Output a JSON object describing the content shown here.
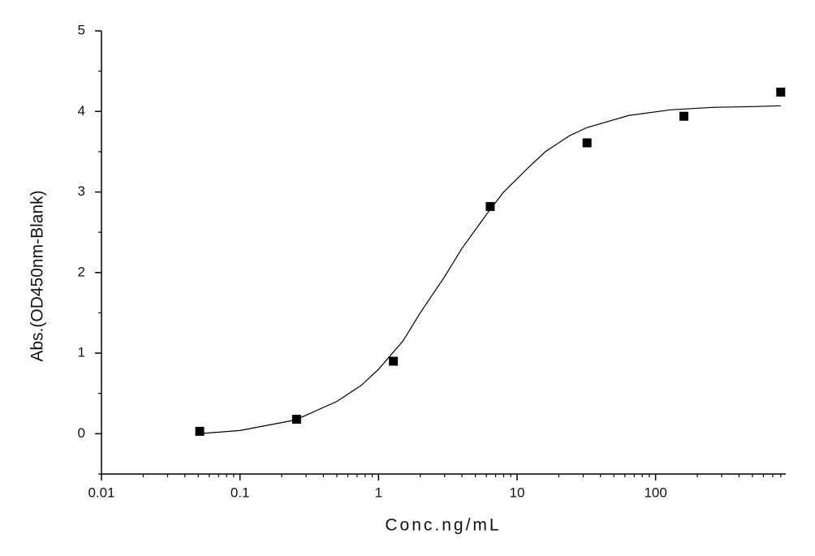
{
  "chart_data": {
    "type": "scatter",
    "x_label": "Conc.ng/mL",
    "y_label": "Abs.(OD450nm-Blank)",
    "xscale": "log",
    "xlim": [
      0.01,
      870
    ],
    "xticks": [
      0.01,
      0.1,
      1,
      10,
      100
    ],
    "xminorticks": [
      0.02,
      0.03,
      0.04,
      0.05,
      0.06,
      0.07,
      0.08,
      0.09,
      0.2,
      0.3,
      0.4,
      0.5,
      0.6,
      0.7,
      0.8,
      0.9,
      2,
      3,
      4,
      5,
      6,
      7,
      8,
      9,
      20,
      30,
      40,
      50,
      60,
      70,
      80,
      90,
      200,
      300,
      400,
      500,
      600,
      700,
      800
    ],
    "ylim": [
      -0.5,
      5
    ],
    "yticks": [
      0,
      1,
      2,
      3,
      4,
      5
    ],
    "yminorticks": [
      -0.5,
      0.5,
      1.5,
      2.5,
      3.5,
      4.5
    ],
    "series": [
      {
        "type": "scatter",
        "color": "#000000",
        "x": [
          0.0512,
          0.256,
          1.28,
          6.4,
          32,
          160,
          800
        ],
        "values": [
          0.03,
          0.18,
          0.9,
          2.82,
          3.61,
          3.94,
          4.24
        ]
      },
      {
        "type": "line",
        "color": "#000000",
        "x": [
          0.05,
          0.1,
          0.25,
          0.5,
          0.75,
          1,
          1.5,
          2,
          3,
          4,
          6,
          8,
          12,
          16,
          24,
          32,
          64,
          128,
          256,
          512,
          800
        ],
        "values": [
          0.0,
          0.04,
          0.17,
          0.4,
          0.6,
          0.8,
          1.15,
          1.5,
          1.95,
          2.3,
          2.72,
          3.0,
          3.3,
          3.5,
          3.7,
          3.8,
          3.95,
          4.02,
          4.05,
          4.06,
          4.07
        ]
      }
    ]
  }
}
